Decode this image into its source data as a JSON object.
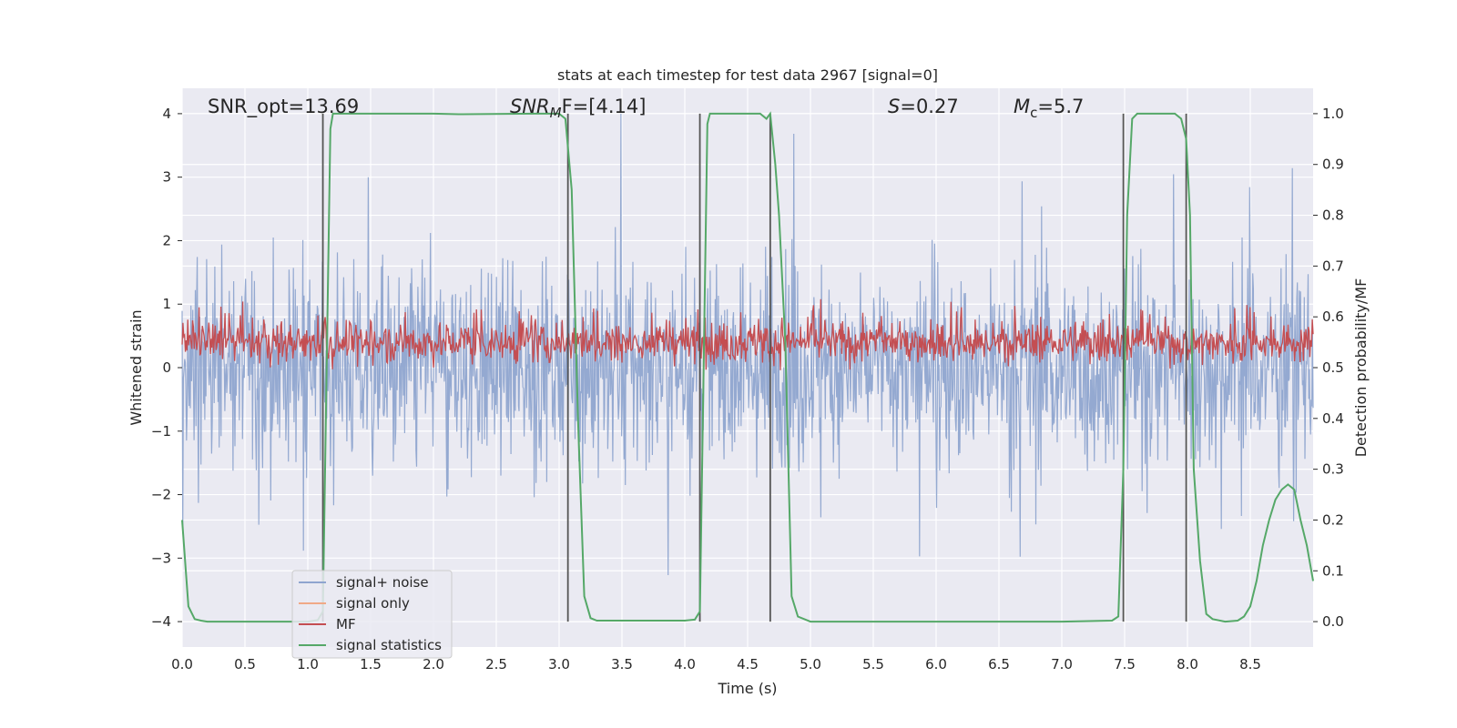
{
  "colors": {
    "plot_bg": "#EAEAF2",
    "grid": "#FFFFFF",
    "signal_noise": "#8FA5CF",
    "signal_only": "#F0A987",
    "mf": "#C44E52",
    "statistics": "#55A868",
    "vlines": "#555555",
    "text": "#262626"
  },
  "chart_data": {
    "type": "line",
    "title": "stats at each timestep for test data 2967 [signal=0]",
    "xlabel": "Time (s)",
    "ylabel": "Whitened strain",
    "ylabel_right": "Detection probability/MF",
    "xlim": [
      0,
      9
    ],
    "ylim": [
      -4.4,
      4.4
    ],
    "ylim_right": [
      -0.05,
      1.05
    ],
    "x_ticks": [
      "0.0",
      "0.5",
      "1.0",
      "1.5",
      "2.0",
      "2.5",
      "3.0",
      "3.5",
      "4.0",
      "4.5",
      "5.0",
      "5.5",
      "6.0",
      "6.5",
      "7.0",
      "7.5",
      "8.0",
      "8.5"
    ],
    "y_ticks": [
      "4",
      "3",
      "2",
      "1",
      "0",
      "−1",
      "−2",
      "−3",
      "−4"
    ],
    "y_ticks_right": [
      "1.0",
      "0.9",
      "0.8",
      "0.7",
      "0.6",
      "0.5",
      "0.4",
      "0.3",
      "0.2",
      "0.1",
      "0.0"
    ],
    "grid": true,
    "legend_placement": "lower-left",
    "annotations": {
      "snr_opt": "SNR_opt=13.69",
      "snr_mf_label": "SNR",
      "snr_mf_sub": "M",
      "snr_mf_rest": "F=[4.14]",
      "s_italic": "S",
      "s_rest": "=0.27",
      "mc_italic": "M",
      "mc_sub": "c",
      "mc_rest": "=5.7"
    },
    "vertical_lines_x": [
      1.12,
      3.07,
      4.12,
      4.68,
      7.49,
      7.99
    ],
    "series": [
      {
        "name": "signal+ noise",
        "axis": "left",
        "style": "dense noise trace, amplitude about ±1.5 with peaks to about ±4"
      },
      {
        "name": "signal only",
        "axis": "left",
        "style": "flat at zero, hidden behind other traces"
      },
      {
        "name": "MF",
        "axis": "right",
        "style": "noise trace between about 0.5 and 0.62, peaks near 0.66"
      },
      {
        "name": "signal statistics",
        "axis": "right",
        "x": [
          0.0,
          0.05,
          0.1,
          0.15,
          0.2,
          0.3,
          1.0,
          1.08,
          1.12,
          1.15,
          1.18,
          1.2,
          2.0,
          2.2,
          2.8,
          3.0,
          3.05,
          3.1,
          3.15,
          3.2,
          3.25,
          3.3,
          4.0,
          4.08,
          4.12,
          4.15,
          4.18,
          4.2,
          4.6,
          4.65,
          4.68,
          4.72,
          4.75,
          4.8,
          4.85,
          4.9,
          5.0,
          7.0,
          7.4,
          7.45,
          7.49,
          7.52,
          7.56,
          7.6,
          7.9,
          7.95,
          7.99,
          8.02,
          8.05,
          8.1,
          8.15,
          8.2,
          8.3,
          8.4,
          8.45,
          8.5,
          8.55,
          8.6,
          8.65,
          8.7,
          8.75,
          8.8,
          8.85,
          8.9,
          8.95,
          9.0
        ],
        "values": [
          0.2,
          0.03,
          0.005,
          0.002,
          0.0,
          0.0,
          0.0,
          0.003,
          0.02,
          0.5,
          0.97,
          1.0,
          1.0,
          0.999,
          1.0,
          1.0,
          0.99,
          0.85,
          0.4,
          0.05,
          0.007,
          0.002,
          0.002,
          0.004,
          0.02,
          0.5,
          0.98,
          1.0,
          1.0,
          0.99,
          1.0,
          0.9,
          0.8,
          0.55,
          0.05,
          0.01,
          0.0,
          0.0,
          0.002,
          0.01,
          0.3,
          0.8,
          0.99,
          1.0,
          1.0,
          0.99,
          0.95,
          0.8,
          0.3,
          0.12,
          0.015,
          0.005,
          0.0,
          0.002,
          0.01,
          0.03,
          0.08,
          0.15,
          0.2,
          0.24,
          0.26,
          0.27,
          0.26,
          0.2,
          0.15,
          0.08
        ]
      }
    ]
  }
}
